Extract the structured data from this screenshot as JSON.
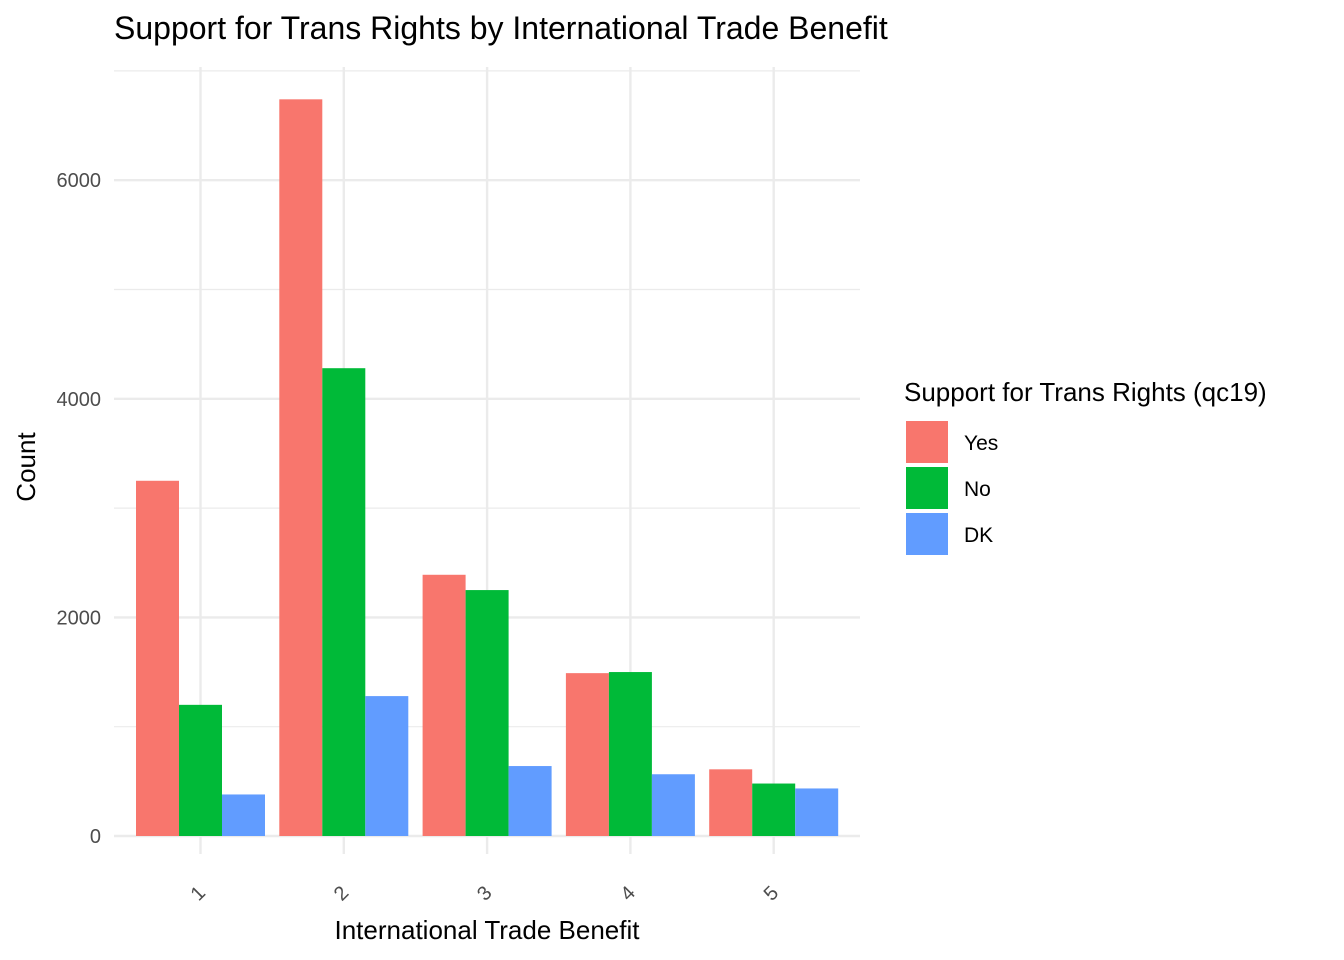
{
  "chart_data": {
    "type": "bar",
    "title": "Support for Trans Rights by International Trade Benefit",
    "xlabel": "International Trade Benefit",
    "ylabel": "Count",
    "categories": [
      "1",
      "2",
      "3",
      "4",
      "5"
    ],
    "series": [
      {
        "name": "Yes",
        "color": "#F8766D",
        "values": [
          3250,
          6740,
          2390,
          1490,
          610
        ]
      },
      {
        "name": "No",
        "color": "#00BA38",
        "values": [
          1200,
          4280,
          2250,
          1500,
          480
        ]
      },
      {
        "name": "DK",
        "color": "#619CFF",
        "values": [
          380,
          1280,
          640,
          565,
          435
        ]
      }
    ],
    "ylim": [
      0,
      7000
    ],
    "yticks": [
      0,
      2000,
      4000,
      6000
    ],
    "ytick_labels": [
      "0",
      "2000",
      "4000",
      "6000"
    ],
    "legend": {
      "title": "Support for Trans Rights (qc19)",
      "placement": "right"
    },
    "grid": true,
    "x_tick_rotation": "45"
  }
}
